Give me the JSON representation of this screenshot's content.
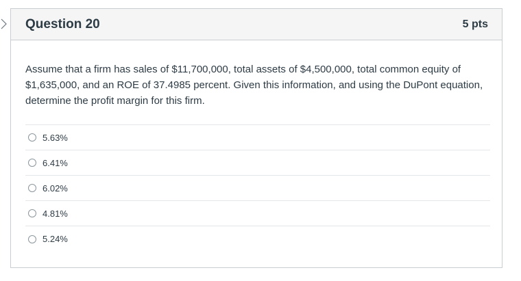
{
  "question": {
    "title": "Question 20",
    "points": "5 pts",
    "text": "Assume that a firm has sales of $11,700,000, total assets of $4,500,000, total common equity of $1,635,000, and an ROE of 37.4985 percent.  Given this information, and using the DuPont equation, determine the profit margin for this firm.",
    "answers": [
      {
        "label": "5.63%"
      },
      {
        "label": "6.41%"
      },
      {
        "label": "6.02%"
      },
      {
        "label": "4.81%"
      },
      {
        "label": "5.24%"
      }
    ]
  }
}
